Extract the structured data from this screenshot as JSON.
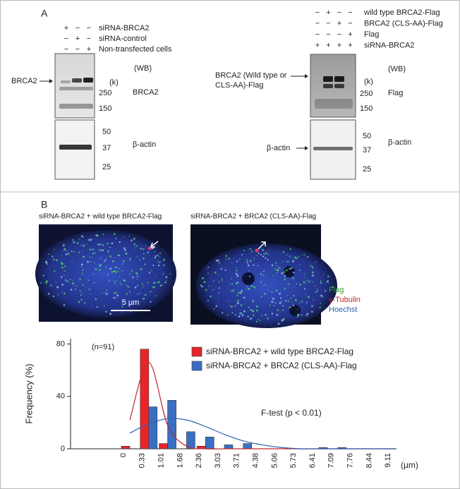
{
  "panel_a": {
    "label": "A",
    "left_blot": {
      "conditions": [
        {
          "name": "siRNA-BRCA2",
          "signs": [
            "+",
            "−",
            "−"
          ]
        },
        {
          "name": "siRNA-control",
          "signs": [
            "−",
            "+",
            "−"
          ]
        },
        {
          "name": "Non-transfected cells",
          "signs": [
            "−",
            "−",
            "+"
          ]
        }
      ],
      "band_label": "BRCA2",
      "units": "(k)",
      "method": "(WB)",
      "upper_markers": [
        "250",
        "150"
      ],
      "upper_antibody": "BRCA2",
      "lower_markers": [
        "50",
        "37",
        "25"
      ],
      "lower_antibody": "β-actin"
    },
    "right_blot": {
      "conditions": [
        {
          "name": "wild type BRCA2-Flag",
          "signs": [
            "−",
            "+",
            "−",
            "−"
          ]
        },
        {
          "name": "BRCA2 (CLS-AA)-Flag",
          "signs": [
            "−",
            "−",
            "+",
            "−"
          ]
        },
        {
          "name": "Flag",
          "signs": [
            "−",
            "−",
            "−",
            "+"
          ]
        },
        {
          "name": "siRNA-BRCA2",
          "signs": [
            "+",
            "+",
            "+",
            "+"
          ]
        }
      ],
      "band_label": [
        "BRCA2 (Wild type or",
        "CLS-AA)-Flag"
      ],
      "units": "(k)",
      "method": "(WB)",
      "upper_markers": [
        "250",
        "150"
      ],
      "upper_antibody": "Flag",
      "lower_band_label": "β-actin",
      "lower_markers": [
        "50",
        "37",
        "25"
      ],
      "lower_antibody": "β-actin"
    }
  },
  "panel_b": {
    "label": "B",
    "images": [
      {
        "caption": "siRNA-BRCA2 + wild type BRCA2-Flag"
      },
      {
        "caption": "siRNA-BRCA2 + BRCA2 (CLS-AA)-Flag"
      }
    ],
    "scale_bar": "5 µm",
    "channels": [
      {
        "name": "Flag",
        "color": "#3a9a3a"
      },
      {
        "name": "γ-Tubulin",
        "color": "#c0282c"
      },
      {
        "name": "Hoechst",
        "color": "#2f5fb0"
      }
    ]
  },
  "chart_data": {
    "type": "bar",
    "categories": [
      "0",
      "0.33",
      "1.01",
      "1.68",
      "2.36",
      "3.03",
      "3.71",
      "4.38",
      "5.06",
      "5.73",
      "6.41",
      "7.09",
      "7.76",
      "8.44",
      "9.11"
    ],
    "x_unit": "(µm)",
    "ylabel": "Frequency (%)",
    "ylim": [
      0,
      84
    ],
    "yticks": [
      0,
      40,
      80
    ],
    "annotations": [
      "(n=91)",
      "F-test (p < 0.01)"
    ],
    "legend": "upper center",
    "series": [
      {
        "name": "siRNA-BRCA2 + wild type BRCA2-Flag",
        "color": "#e8262a",
        "fit_color": "#c0282c",
        "values": [
          2,
          76,
          4,
          0,
          2,
          0,
          0,
          0,
          0,
          0,
          0,
          0,
          0,
          0,
          0
        ],
        "fit": [
          22,
          66,
          18,
          2,
          0,
          0,
          0,
          0,
          0,
          0,
          0,
          0,
          0,
          0,
          0
        ]
      },
      {
        "name": "siRNA-BRCA2 + BRCA2 (CLS-AA)-Flag",
        "color": "#3a6fc4",
        "fit_color": "#2f5fb0",
        "values": [
          0,
          32,
          37,
          13,
          9,
          3,
          4,
          0,
          0,
          0,
          1,
          1,
          0,
          0,
          0
        ],
        "fit": [
          12,
          19,
          23,
          22,
          17,
          11,
          6,
          3,
          1,
          0,
          0,
          0,
          0,
          0,
          0
        ]
      }
    ]
  }
}
